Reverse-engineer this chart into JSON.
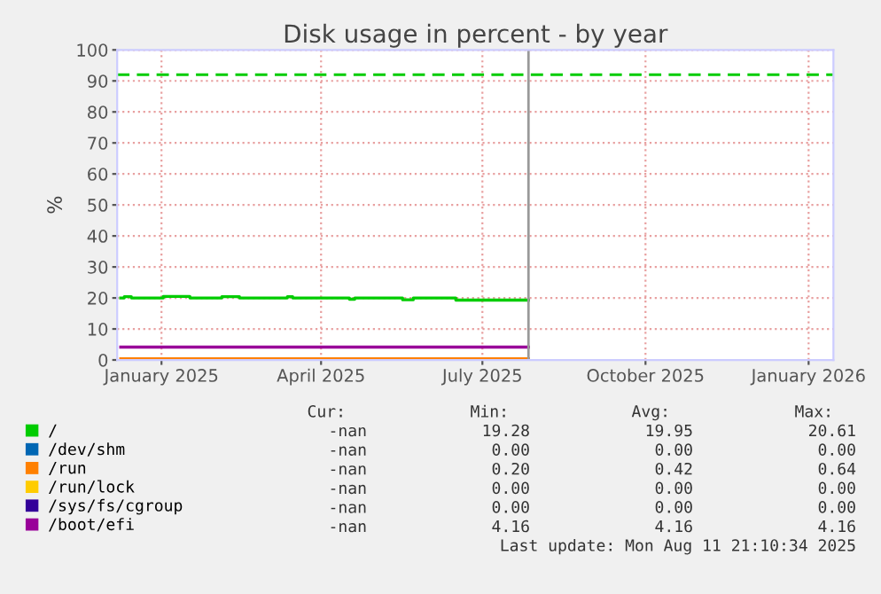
{
  "chart_data": {
    "type": "line",
    "title": "Disk usage in percent - by year",
    "ylabel": "%",
    "xlim": [
      "2024-12-07",
      "2026-01-15"
    ],
    "ylim": [
      0,
      100
    ],
    "xticks": [
      {
        "value": "2025-01-01",
        "label": "January 2025"
      },
      {
        "value": "2025-04-01",
        "label": "April 2025"
      },
      {
        "value": "2025-07-01",
        "label": "July 2025"
      },
      {
        "value": "2025-10-01",
        "label": "October 2025"
      },
      {
        "value": "2026-01-01",
        "label": "January 2026"
      }
    ],
    "yticks": [
      0,
      10,
      20,
      30,
      40,
      50,
      60,
      70,
      80,
      90,
      100
    ],
    "grid": true,
    "legend": "bottom left",
    "marker": "none",
    "line_style": "solid",
    "x": [
      "2024-12-09",
      "2024-12-11",
      "2024-12-11",
      "2024-12-15",
      "2024-12-15",
      "2025-01-02",
      "2025-01-02",
      "2025-01-17",
      "2025-01-17",
      "2025-02-04",
      "2025-02-04",
      "2025-02-14",
      "2025-02-14",
      "2025-03-13",
      "2025-03-13",
      "2025-03-16",
      "2025-03-16",
      "2025-04-17",
      "2025-04-17",
      "2025-04-20",
      "2025-04-20",
      "2025-05-17",
      "2025-05-17",
      "2025-05-23",
      "2025-05-23",
      "2025-06-16",
      "2025-06-16",
      "2025-07-27"
    ],
    "series": [
      {
        "name": "/",
        "color": "#00cc00",
        "values": [
          20.0,
          20.0,
          20.4,
          20.4,
          20.0,
          20.0,
          20.5,
          20.5,
          20.0,
          20.0,
          20.4,
          20.4,
          20.0,
          20.0,
          20.4,
          20.4,
          20.0,
          20.0,
          19.6,
          19.6,
          20.0,
          20.0,
          19.4,
          19.4,
          20.0,
          20.0,
          19.3,
          19.3
        ]
      },
      {
        "name": "/dev/shm",
        "color": "#0066b3",
        "values": [
          null,
          null,
          null,
          null,
          null,
          null,
          null,
          null,
          null,
          null,
          null,
          null,
          null,
          null,
          null,
          null,
          null,
          null,
          null,
          null,
          null,
          null,
          null,
          null,
          null,
          null,
          null,
          null
        ]
      },
      {
        "name": "/run",
        "color": "#ff8000",
        "values": [
          0.4,
          0.4,
          0.4,
          0.4,
          0.4,
          0.4,
          0.4,
          0.4,
          0.4,
          0.4,
          0.4,
          0.4,
          0.4,
          0.4,
          0.4,
          0.4,
          0.4,
          0.4,
          0.4,
          0.4,
          0.4,
          0.4,
          0.4,
          0.4,
          0.4,
          0.4,
          0.4,
          0.4
        ]
      },
      {
        "name": "/run/lock",
        "color": "#ffcc00",
        "values": [
          null,
          null,
          null,
          null,
          null,
          null,
          null,
          null,
          null,
          null,
          null,
          null,
          null,
          null,
          null,
          null,
          null,
          null,
          null,
          null,
          null,
          null,
          null,
          null,
          null,
          null,
          null,
          null
        ]
      },
      {
        "name": "/sys/fs/cgroup",
        "color": "#330099",
        "values": [
          null,
          null,
          null,
          null,
          null,
          null,
          null,
          null,
          null,
          null,
          null,
          null,
          null,
          null,
          null,
          null,
          null,
          null,
          null,
          null,
          null,
          null,
          null,
          null,
          null,
          null,
          null,
          null
        ]
      },
      {
        "name": "/boot/efi",
        "color": "#990099",
        "values": [
          4.16,
          4.16,
          4.16,
          4.16,
          4.16,
          4.16,
          4.16,
          4.16,
          4.16,
          4.16,
          4.16,
          4.16,
          4.16,
          4.16,
          4.16,
          4.16,
          4.16,
          4.16,
          4.16,
          4.16,
          4.16,
          4.16,
          4.16,
          4.16,
          4.16,
          4.16,
          4.16,
          4.16
        ]
      }
    ],
    "ref_lines": [
      {
        "axis": "y",
        "value": 92,
        "label": null,
        "color": "#00cc00",
        "line_style": "dashed"
      },
      {
        "axis": "x",
        "value": "2025-07-27",
        "label": null,
        "color": "#999999",
        "line_style": "solid"
      }
    ],
    "annotations": [
      "Cur:",
      "Min:",
      "Avg:",
      "Max:",
      "-nan",
      "19.28",
      "19.95",
      "20.61",
      "-nan",
      "0.00",
      "0.00",
      "0.00",
      "-nan",
      "0.20",
      "0.42",
      "0.64",
      "-nan",
      "0.00",
      "0.00",
      "0.00",
      "-nan",
      "0.00",
      "0.00",
      "0.00",
      "-nan",
      "4.16",
      "4.16",
      "4.16",
      "Last update: Mon Aug 11 21:10:34 2025"
    ]
  }
}
